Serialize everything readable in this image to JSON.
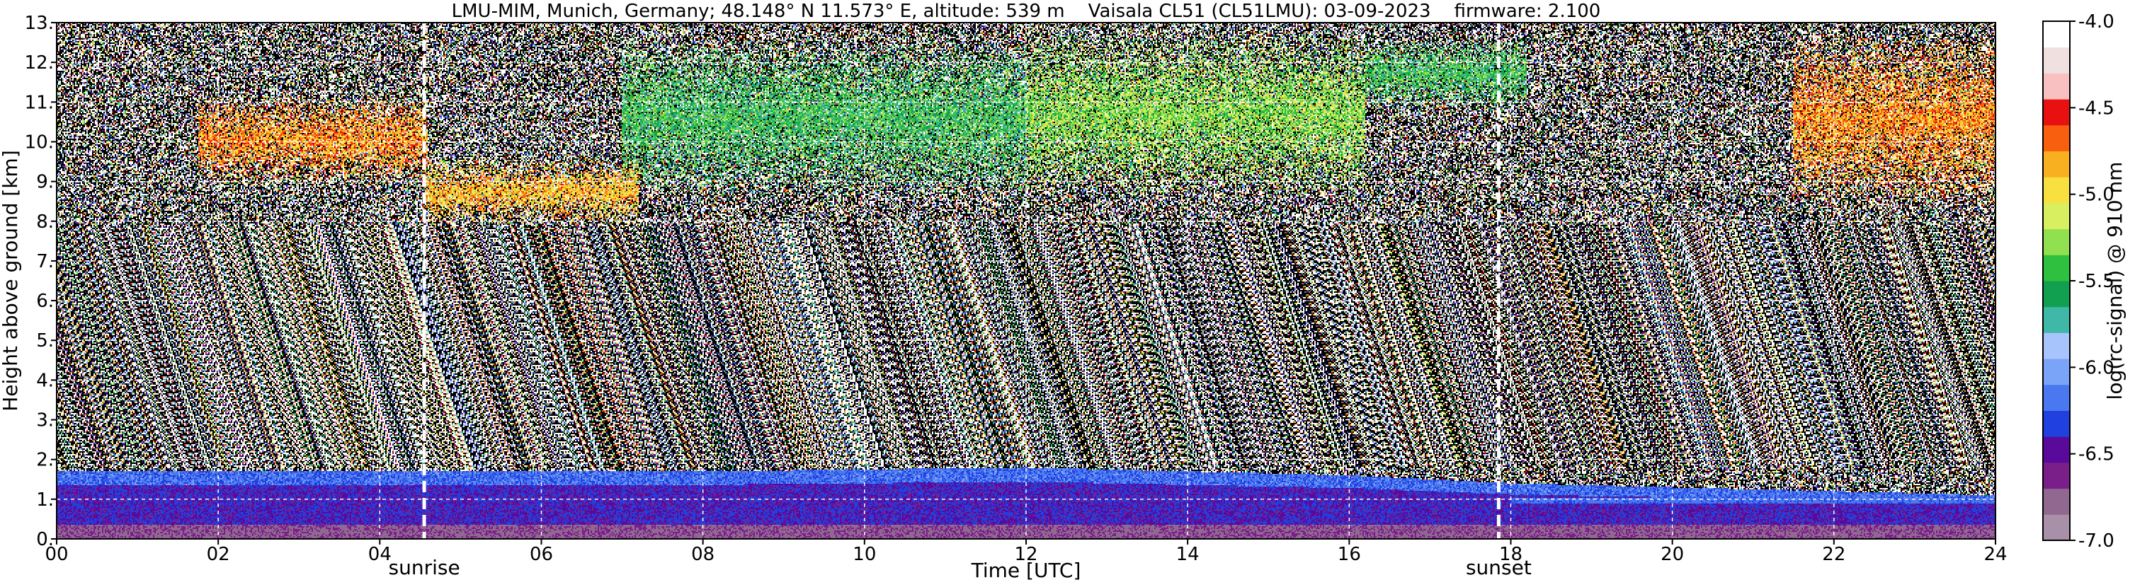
{
  "chart_data": {
    "type": "heatmap",
    "title": "LMU-MIM, Munich, Germany; 48.148° N 11.573° E, altitude: 539 m    Vaisala CL51 (CL51LMU): 03-09-2023    firmware: 2.100",
    "xlabel": "Time [UTC]",
    "ylabel": "Height above ground [km]",
    "colorbar_label": "log(rc-signal) @ 910 nm",
    "xlim": [
      0,
      24
    ],
    "ylim": [
      0,
      13
    ],
    "clim": [
      -7.0,
      -4.0
    ],
    "grid": true,
    "x_ticks": [
      0,
      2,
      4,
      6,
      8,
      10,
      12,
      14,
      16,
      18,
      20,
      22,
      24
    ],
    "x_tick_labels": [
      "00",
      "02",
      "04",
      "06",
      "08",
      "10",
      "12",
      "14",
      "16",
      "18",
      "20",
      "22",
      "24"
    ],
    "y_ticks": [
      0,
      1,
      2,
      3,
      4,
      5,
      6,
      7,
      8,
      9,
      10,
      11,
      12,
      13
    ],
    "y_tick_labels": [
      "0.",
      "1.",
      "2.",
      "3.",
      "4.",
      "5.",
      "6.",
      "7.",
      "8.",
      "9.",
      "10.",
      "11.",
      "12.",
      "13."
    ],
    "colorbar_ticks": [
      -7.0,
      -6.5,
      -6.0,
      -5.5,
      -5.0,
      -4.5,
      -4.0
    ],
    "colorbar_tick_labels": [
      "-7.0",
      "-6.5",
      "-6.0",
      "-5.5",
      "-5.0",
      "-4.5",
      "-4.0"
    ],
    "colormap": [
      "#a890a8",
      "#906890",
      "#7a1f8a",
      "#5a0a9a",
      "#2040e0",
      "#4a78f0",
      "#7aa4f8",
      "#a8c4fc",
      "#40b8a8",
      "#10a050",
      "#30c040",
      "#90e050",
      "#d8f060",
      "#f8e040",
      "#f8b020",
      "#f86010",
      "#e81010",
      "#f8c0c0",
      "#f0e0e0",
      "#ffffff"
    ],
    "markers": [
      {
        "name": "sunrise",
        "x": 4.55,
        "label": "sunrise"
      },
      {
        "name": "sunset",
        "x": 17.85,
        "label": "sunset"
      }
    ],
    "cloud_layers": [
      {
        "x0": 1.75,
        "x1": 4.6,
        "y_top": 11.2,
        "y_bottom": 8.9,
        "level": -4.9
      },
      {
        "x0": 4.55,
        "x1": 7.2,
        "y_top": 9.6,
        "y_bottom": 7.9,
        "level": -5.0
      },
      {
        "x0": 7.0,
        "x1": 12.0,
        "y_top": 12.6,
        "y_bottom": 8.6,
        "level": -5.6
      },
      {
        "x0": 12.0,
        "x1": 16.2,
        "y_top": 12.8,
        "y_bottom": 8.6,
        "level": -5.4
      },
      {
        "x0": 16.2,
        "x1": 18.2,
        "y_top": 12.6,
        "y_bottom": 10.8,
        "level": -5.6
      },
      {
        "x0": 21.5,
        "x1": 24.0,
        "y_top": 12.8,
        "y_bottom": 8.3,
        "level": -4.9
      }
    ],
    "boundary_layer": [
      {
        "x": 0,
        "top_km": 1.7
      },
      {
        "x": 4,
        "top_km": 1.7
      },
      {
        "x": 8,
        "top_km": 1.7
      },
      {
        "x": 12,
        "top_km": 1.8
      },
      {
        "x": 16,
        "top_km": 1.6
      },
      {
        "x": 18,
        "top_km": 1.4
      },
      {
        "x": 20,
        "top_km": 1.3
      },
      {
        "x": 24,
        "top_km": 1.1
      }
    ]
  }
}
